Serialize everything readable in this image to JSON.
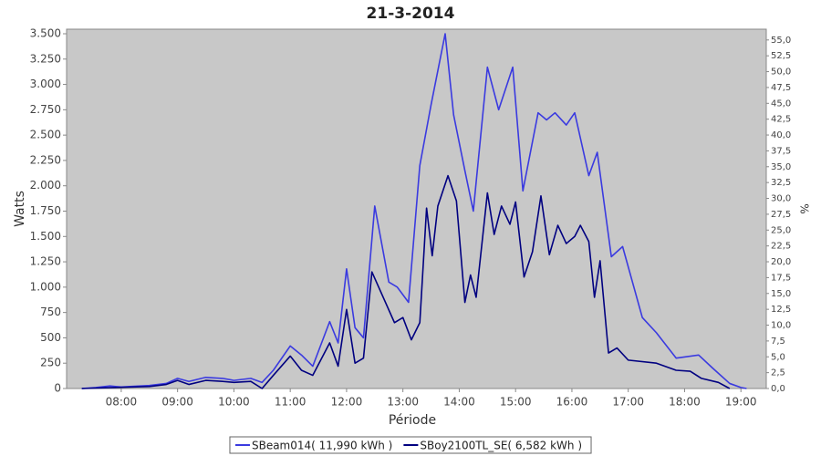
{
  "chart_data": {
    "type": "line",
    "title": "21-3-2014",
    "x_label": "Période",
    "y_label": "Watts",
    "y2_label": "%",
    "xlim": [
      7.03,
      19.45
    ],
    "xticks": [
      {
        "value": 8,
        "label": "08:00"
      },
      {
        "value": 9,
        "label": "09:00"
      },
      {
        "value": 10,
        "label": "10:00"
      },
      {
        "value": 11,
        "label": "11:00"
      },
      {
        "value": 12,
        "label": "12:00"
      },
      {
        "value": 13,
        "label": "13:00"
      },
      {
        "value": 14,
        "label": "14:00"
      },
      {
        "value": 15,
        "label": "15:00"
      },
      {
        "value": 16,
        "label": "16:00"
      },
      {
        "value": 17,
        "label": "17:00"
      },
      {
        "value": 18,
        "label": "18:00"
      },
      {
        "value": 19,
        "label": "19:00"
      }
    ],
    "ylim": [
      0,
      3545
    ],
    "yticks": [
      0,
      250,
      500,
      750,
      {
        "value": 1000,
        "label": "1.000"
      },
      {
        "value": 1250,
        "label": "1.250"
      },
      {
        "value": 1500,
        "label": "1.500"
      },
      {
        "value": 1750,
        "label": "1.750"
      },
      {
        "value": 2000,
        "label": "2.000"
      },
      {
        "value": 2250,
        "label": "2.250"
      },
      {
        "value": 2500,
        "label": "2.500"
      },
      {
        "value": 2750,
        "label": "2.750"
      },
      {
        "value": 3000,
        "label": "3.000"
      },
      {
        "value": 3250,
        "label": "3.250"
      },
      {
        "value": 3500,
        "label": "3.500"
      }
    ],
    "y2lim": [
      0,
      56.7
    ],
    "y2ticks": [
      {
        "value": 0,
        "label": "0,0"
      },
      {
        "value": 2.5,
        "label": "2,5"
      },
      {
        "value": 5,
        "label": "5,0"
      },
      {
        "value": 7.5,
        "label": "7,5"
      },
      {
        "value": 10,
        "label": "10,0"
      },
      {
        "value": 12.5,
        "label": "12,5"
      },
      {
        "value": 15,
        "label": "15,0"
      },
      {
        "value": 17.5,
        "label": "17,5"
      },
      {
        "value": 20,
        "label": "20,0"
      },
      {
        "value": 22.5,
        "label": "22,5"
      },
      {
        "value": 25,
        "label": "25,0"
      },
      {
        "value": 27.5,
        "label": "27,5"
      },
      {
        "value": 30,
        "label": "30,0"
      },
      {
        "value": 32.5,
        "label": "32,5"
      },
      {
        "value": 35,
        "label": "35,0"
      },
      {
        "value": 37.5,
        "label": "37,5"
      },
      {
        "value": 40,
        "label": "40,0"
      },
      {
        "value": 42.5,
        "label": "42,5"
      },
      {
        "value": 45,
        "label": "45,0"
      },
      {
        "value": 47.5,
        "label": "47,5"
      },
      {
        "value": 50,
        "label": "50,0"
      },
      {
        "value": 52.5,
        "label": "52,5"
      },
      {
        "value": 55,
        "label": "55,0"
      }
    ],
    "grid": false,
    "legend": "bottom",
    "background": "#c8c8c8",
    "series": [
      {
        "name": "SBeam014( 11,990 kWh )",
        "color": "#3a3ae0",
        "x": [
          7.3,
          7.55,
          7.8,
          8.0,
          8.5,
          8.8,
          9.0,
          9.2,
          9.5,
          9.8,
          10.0,
          10.3,
          10.5,
          10.7,
          11.0,
          11.2,
          11.4,
          11.7,
          11.85,
          12.0,
          12.15,
          12.3,
          12.5,
          12.75,
          12.9,
          13.1,
          13.3,
          13.5,
          13.75,
          13.9,
          14.1,
          14.25,
          14.5,
          14.7,
          14.95,
          15.13,
          15.4,
          15.55,
          15.7,
          15.9,
          16.05,
          16.3,
          16.45,
          16.7,
          16.9,
          17.25,
          17.5,
          17.85,
          18.25,
          18.5,
          18.8,
          19.0,
          19.1
        ],
        "values": [
          0,
          10,
          25,
          15,
          30,
          50,
          100,
          70,
          110,
          100,
          80,
          100,
          60,
          180,
          420,
          330,
          220,
          660,
          450,
          1180,
          600,
          500,
          1800,
          1050,
          1000,
          850,
          2200,
          2800,
          3500,
          2700,
          2150,
          1750,
          3170,
          2750,
          3170,
          1950,
          2720,
          2650,
          2720,
          2600,
          2720,
          2100,
          2330,
          1300,
          1400,
          700,
          550,
          300,
          330,
          200,
          50,
          10,
          0
        ]
      },
      {
        "name": "SBoy2100TL_SE( 6,582 kWh )",
        "color": "#000080",
        "x": [
          7.3,
          8.5,
          8.8,
          9.0,
          9.2,
          9.5,
          9.8,
          10.0,
          10.3,
          10.5,
          10.7,
          11.0,
          11.2,
          11.4,
          11.7,
          11.85,
          12.0,
          12.15,
          12.3,
          12.45,
          12.65,
          12.85,
          13.0,
          13.15,
          13.3,
          13.42,
          13.52,
          13.62,
          13.8,
          13.95,
          14.1,
          14.2,
          14.3,
          14.5,
          14.62,
          14.75,
          14.9,
          15.0,
          15.15,
          15.3,
          15.45,
          15.6,
          15.75,
          15.9,
          16.05,
          16.15,
          16.3,
          16.4,
          16.5,
          16.65,
          16.8,
          17.0,
          17.5,
          17.85,
          18.1,
          18.3,
          18.6,
          18.8
        ],
        "values": [
          0,
          20,
          40,
          80,
          40,
          80,
          70,
          60,
          70,
          0,
          130,
          320,
          180,
          130,
          450,
          220,
          780,
          250,
          300,
          1150,
          900,
          650,
          700,
          480,
          650,
          1780,
          1310,
          1800,
          2100,
          1850,
          850,
          1120,
          900,
          1930,
          1520,
          1800,
          1620,
          1840,
          1100,
          1350,
          1900,
          1320,
          1610,
          1430,
          1500,
          1610,
          1450,
          900,
          1260,
          350,
          400,
          280,
          250,
          180,
          170,
          100,
          60,
          0
        ]
      }
    ]
  }
}
